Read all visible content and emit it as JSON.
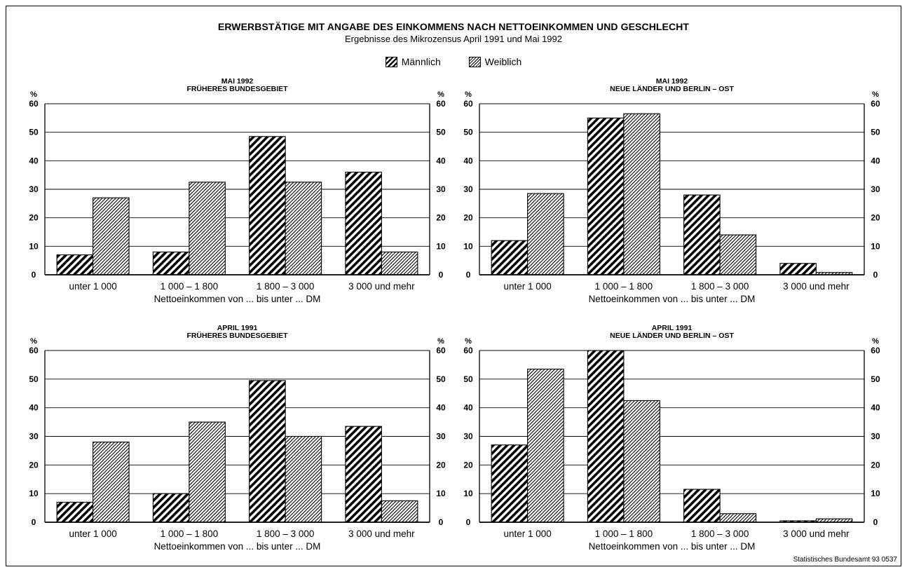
{
  "title": "ERWERBSTÄTIGE MIT ANGABE DES EINKOMMENS NACH NETTOEINKOMMEN UND GESCHLECHT",
  "subtitle": "Ergebnisse des Mikrozensus April 1991 und Mai 1992",
  "legend": {
    "male": "Männlich",
    "female": "Weiblich",
    "placement": "top-center"
  },
  "source": "Statistisches Bundesamt 93 0537",
  "colors": {
    "ink": "#000000",
    "paper": "#ffffff"
  },
  "chart_data": [
    {
      "type": "bar",
      "title_line1": "MAI 1992",
      "title_line2": "FRÜHERES BUNDESGEBIET",
      "unit": "%",
      "xlabel": "Nettoeinkommen von ... bis unter ... DM",
      "categories": [
        "unter 1 000",
        "1 000 – 1 800",
        "1 800 – 3 000",
        "3 000 und mehr"
      ],
      "ylim": [
        0,
        60
      ],
      "yticks": [
        0,
        10,
        20,
        30,
        40,
        50,
        60
      ],
      "grid": true,
      "series": [
        {
          "name": "Männlich",
          "values": [
            7,
            8,
            48.5,
            36
          ]
        },
        {
          "name": "Weiblich",
          "values": [
            27,
            32.5,
            32.5,
            8
          ]
        }
      ]
    },
    {
      "type": "bar",
      "title_line1": "MAI 1992",
      "title_line2": "NEUE LÄNDER UND BERLIN – OST",
      "unit": "%",
      "xlabel": "Nettoeinkommen von ... bis unter ... DM",
      "categories": [
        "unter 1 000",
        "1 000 – 1 800",
        "1 800 – 3 000",
        "3 000 und mehr"
      ],
      "ylim": [
        0,
        60
      ],
      "yticks": [
        0,
        10,
        20,
        30,
        40,
        50,
        60
      ],
      "grid": true,
      "series": [
        {
          "name": "Männlich",
          "values": [
            12,
            55,
            28,
            4
          ]
        },
        {
          "name": "Weiblich",
          "values": [
            28.5,
            56.5,
            14,
            0.8
          ]
        }
      ]
    },
    {
      "type": "bar",
      "title_line1": "APRIL 1991",
      "title_line2": "FRÜHERES BUNDESGEBIET",
      "unit": "%",
      "xlabel": "Nettoeinkommen von ... bis unter ... DM",
      "categories": [
        "unter 1 000",
        "1 000 – 1 800",
        "1 800 – 3 000",
        "3 000 und mehr"
      ],
      "ylim": [
        0,
        60
      ],
      "yticks": [
        0,
        10,
        20,
        30,
        40,
        50,
        60
      ],
      "grid": true,
      "series": [
        {
          "name": "Männlich",
          "values": [
            7,
            10,
            49.5,
            33.5
          ]
        },
        {
          "name": "Weiblich",
          "values": [
            28,
            35,
            30,
            7.5
          ]
        }
      ]
    },
    {
      "type": "bar",
      "title_line1": "APRIL 1991",
      "title_line2": "NEUE LÄNDER UND BERLIN – OST",
      "unit": "%",
      "xlabel": "Nettoeinkommen von ... bis unter ... DM",
      "categories": [
        "unter 1 000",
        "1 000 – 1 800",
        "1 800 – 3 000",
        "3 000 und mehr"
      ],
      "ylim": [
        0,
        60
      ],
      "yticks": [
        0,
        10,
        20,
        30,
        40,
        50,
        60
      ],
      "grid": true,
      "series": [
        {
          "name": "Männlich",
          "values": [
            27,
            60,
            11.5,
            0.5
          ]
        },
        {
          "name": "Weiblich",
          "values": [
            53.5,
            42.5,
            3,
            1.2
          ]
        }
      ]
    }
  ]
}
